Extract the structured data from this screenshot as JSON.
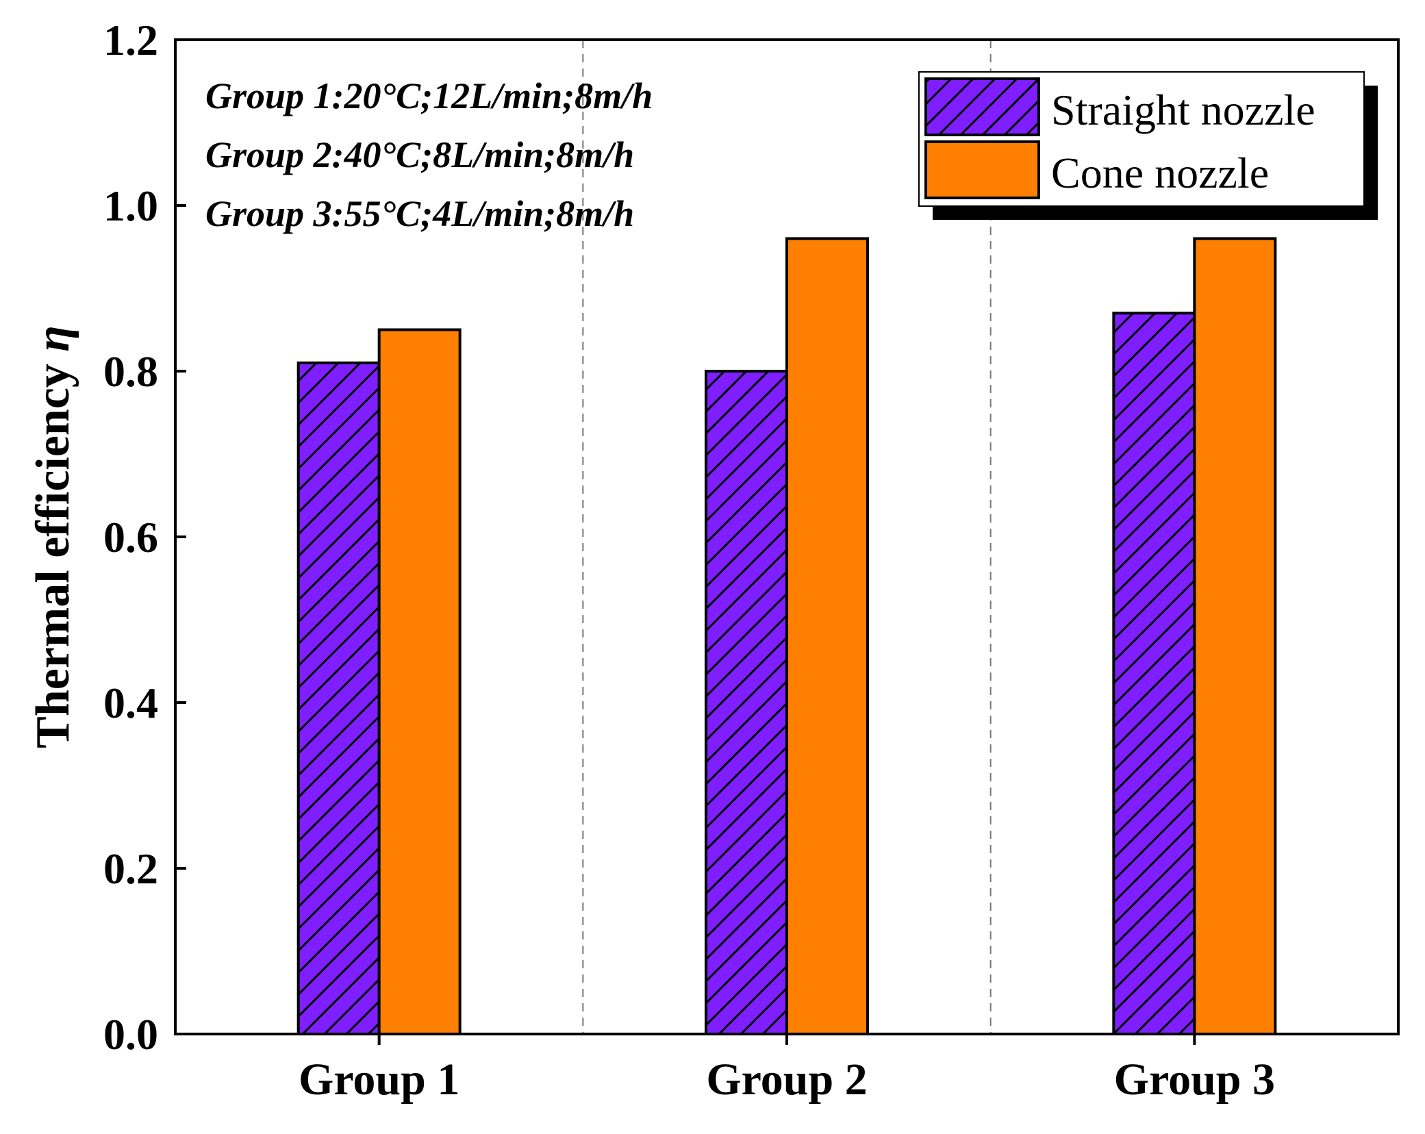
{
  "chart_data": {
    "type": "bar",
    "title": "",
    "xlabel": "",
    "ylabel": "Thermal efficiency",
    "ylabel_symbol": "η",
    "categories": [
      "Group 1",
      "Group 2",
      "Group 3"
    ],
    "ylim": [
      0,
      1.2
    ],
    "yticks": [
      "0.0",
      "0.2",
      "0.4",
      "0.6",
      "0.8",
      "1.0",
      "1.2"
    ],
    "series": [
      {
        "name": "Straight nozzle",
        "values": [
          0.81,
          0.8,
          0.87
        ],
        "color": "#7f1fff",
        "pattern": "diagonal-hatch"
      },
      {
        "name": "Cone nozzle",
        "values": [
          0.85,
          0.96,
          0.96
        ],
        "color": "#ff8000",
        "pattern": "solid"
      }
    ],
    "annotations": [
      "Group 1:20°C;12L/min;8m/h",
      "Group 2:40°C;8L/min;8m/h",
      "Group 3:55°C;4L/min;8m/h"
    ],
    "legend_position": "top-right",
    "category_separators": "dashed"
  }
}
